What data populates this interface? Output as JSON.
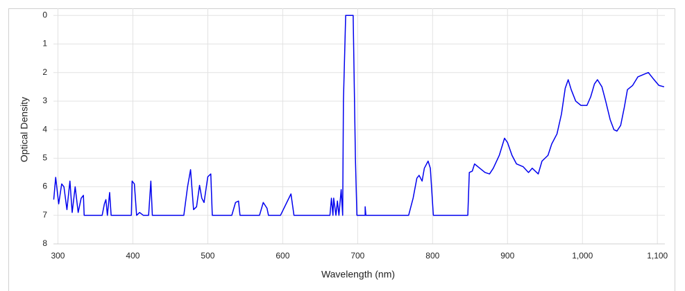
{
  "chart_data": {
    "type": "line",
    "x_axis_label": "Wavelength (nm)",
    "y_axis_label": "Optical Density",
    "color": "#0000ee",
    "grid": true,
    "y_inverted": true,
    "xlim": [
      294,
      1110
    ],
    "ylim": [
      -0.25,
      8
    ],
    "xticks": [
      300,
      400,
      500,
      600,
      700,
      800,
      900,
      {
        "value": 1000,
        "label": "1,000"
      },
      {
        "value": 1100,
        "label": "1,100"
      }
    ],
    "yticks": [
      0,
      1,
      2,
      3,
      4,
      5,
      6,
      7,
      8
    ],
    "x": [
      294.4,
      297,
      301,
      305,
      308,
      312,
      316,
      319,
      323,
      327,
      331,
      334,
      335,
      359,
      362,
      364,
      366,
      369,
      371,
      398,
      399,
      402,
      405,
      409,
      414,
      421,
      424,
      426,
      468,
      473,
      477,
      481,
      485,
      489,
      492,
      495,
      500,
      504,
      506,
      532,
      537,
      541,
      543,
      569,
      574,
      579,
      581,
      597,
      611,
      615,
      663,
      665,
      667,
      668,
      671,
      673,
      675,
      678,
      680,
      681,
      684,
      694,
      697,
      699,
      710,
      710,
      711,
      768,
      774,
      779,
      782,
      786,
      789,
      794,
      797,
      801,
      847,
      849,
      853,
      856,
      863,
      870,
      876,
      881,
      889,
      896,
      900,
      906,
      912,
      921,
      928,
      933,
      937,
      941,
      946,
      954,
      959,
      966,
      972,
      977,
      981,
      985,
      991,
      998,
      1006,
      1011,
      1016,
      1020,
      1026,
      1031,
      1037,
      1042,
      1046,
      1051,
      1056,
      1060,
      1067,
      1074,
      1083,
      1088,
      1094,
      1102,
      1109
    ],
    "values": [
      6.45,
      5.67,
      6.6,
      5.9,
      6.0,
      6.8,
      5.8,
      6.9,
      6.0,
      6.9,
      6.4,
      6.3,
      7,
      7,
      6.6,
      6.45,
      7,
      6.2,
      7,
      7,
      5.8,
      5.9,
      7,
      6.9,
      7,
      7,
      5.8,
      7,
      7,
      6.0,
      5.4,
      6.8,
      6.7,
      5.95,
      6.4,
      6.55,
      5.65,
      5.55,
      7,
      7,
      6.55,
      6.5,
      7,
      7,
      6.55,
      6.75,
      7,
      7,
      6.25,
      7,
      7,
      6.4,
      7,
      6.4,
      7,
      6.5,
      7,
      6.1,
      7,
      3.0,
      0,
      0,
      5.0,
      7,
      7,
      6.7,
      7,
      7,
      6.4,
      5.7,
      5.6,
      5.8,
      5.35,
      5.1,
      5.35,
      7,
      7,
      5.5,
      5.45,
      5.2,
      5.35,
      5.5,
      5.55,
      5.35,
      4.9,
      4.3,
      4.45,
      4.9,
      5.2,
      5.3,
      5.5,
      5.35,
      5.45,
      5.55,
      5.1,
      4.9,
      4.5,
      4.15,
      3.45,
      2.55,
      2.25,
      2.6,
      3.0,
      3.15,
      3.15,
      2.85,
      2.4,
      2.25,
      2.5,
      3.0,
      3.65,
      4.0,
      4.05,
      3.85,
      3.2,
      2.6,
      2.45,
      2.15,
      2.05,
      2.0,
      2.2,
      2.45,
      2.5
    ]
  }
}
